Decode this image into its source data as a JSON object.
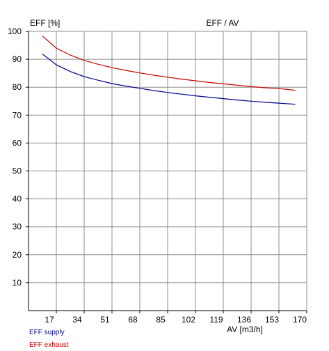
{
  "chart_data": {
    "type": "line",
    "title": "EFF / AV",
    "ylabel": "EFF [%]",
    "xlabel": "AV [m3/h]",
    "xlim": [
      0,
      170
    ],
    "ylim": [
      0,
      100
    ],
    "x_ticks": [
      17,
      34,
      51,
      68,
      85,
      102,
      119,
      136,
      153,
      170
    ],
    "y_ticks": [
      10,
      20,
      30,
      40,
      50,
      60,
      70,
      80,
      90,
      100
    ],
    "grid": true,
    "legend_position": "bottom-left",
    "series": [
      {
        "name": "EFF supply",
        "color": "#00008b",
        "x": [
          8.5,
          17,
          25.5,
          34,
          42.5,
          51,
          59.5,
          68,
          76.5,
          85,
          93.5,
          102,
          110.5,
          119,
          127.5,
          136,
          144.5,
          153,
          163
        ],
        "y": [
          91.9,
          88.0,
          85.6,
          83.8,
          82.5,
          81.3,
          80.4,
          79.6,
          78.8,
          78.1,
          77.5,
          76.9,
          76.4,
          75.9,
          75.4,
          75.0,
          74.6,
          74.3,
          73.9
        ]
      },
      {
        "name": "EFF exhaust",
        "color": "#c80000",
        "x": [
          8.5,
          17,
          25.5,
          34,
          42.5,
          51,
          59.5,
          68,
          76.5,
          85,
          93.5,
          102,
          110.5,
          119,
          127.5,
          136,
          144.5,
          153,
          163
        ],
        "y": [
          98.3,
          94.0,
          91.5,
          89.6,
          88.2,
          87.0,
          86.0,
          85.1,
          84.3,
          83.6,
          82.9,
          82.3,
          81.7,
          81.2,
          80.7,
          80.2,
          79.8,
          79.5,
          78.9
        ]
      }
    ]
  }
}
